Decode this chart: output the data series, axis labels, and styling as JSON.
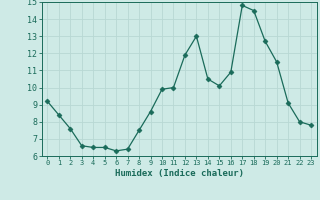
{
  "x": [
    0,
    1,
    2,
    3,
    4,
    5,
    6,
    7,
    8,
    9,
    10,
    11,
    12,
    13,
    14,
    15,
    16,
    17,
    18,
    19,
    20,
    21,
    22,
    23
  ],
  "y": [
    9.2,
    8.4,
    7.6,
    6.6,
    6.5,
    6.5,
    6.3,
    6.4,
    7.5,
    8.6,
    9.9,
    10.0,
    11.9,
    13.0,
    10.5,
    10.1,
    10.9,
    14.8,
    14.5,
    12.7,
    11.5,
    9.1,
    8.0,
    7.8
  ],
  "xlabel": "Humidex (Indice chaleur)",
  "ylim": [
    6,
    15
  ],
  "xlim_min": -0.5,
  "xlim_max": 23.5,
  "yticks": [
    6,
    7,
    8,
    9,
    10,
    11,
    12,
    13,
    14,
    15
  ],
  "xticks": [
    0,
    1,
    2,
    3,
    4,
    5,
    6,
    7,
    8,
    9,
    10,
    11,
    12,
    13,
    14,
    15,
    16,
    17,
    18,
    19,
    20,
    21,
    22,
    23
  ],
  "xtick_labels": [
    "0",
    "1",
    "2",
    "3",
    "4",
    "5",
    "6",
    "7",
    "8",
    "9",
    "10",
    "11",
    "12",
    "13",
    "14",
    "15",
    "16",
    "17",
    "18",
    "19",
    "20",
    "21",
    "22",
    "23"
  ],
  "line_color": "#1a6b5a",
  "marker": "D",
  "marker_size": 2.5,
  "bg_color": "#ceeae6",
  "grid_color": "#b8d8d4",
  "axes_color": "#1a6b5a",
  "label_color": "#1a6b5a",
  "tick_label_color": "#1a6b5a",
  "xlabel_fontsize": 6.5,
  "ytick_fontsize": 6,
  "xtick_fontsize": 5
}
